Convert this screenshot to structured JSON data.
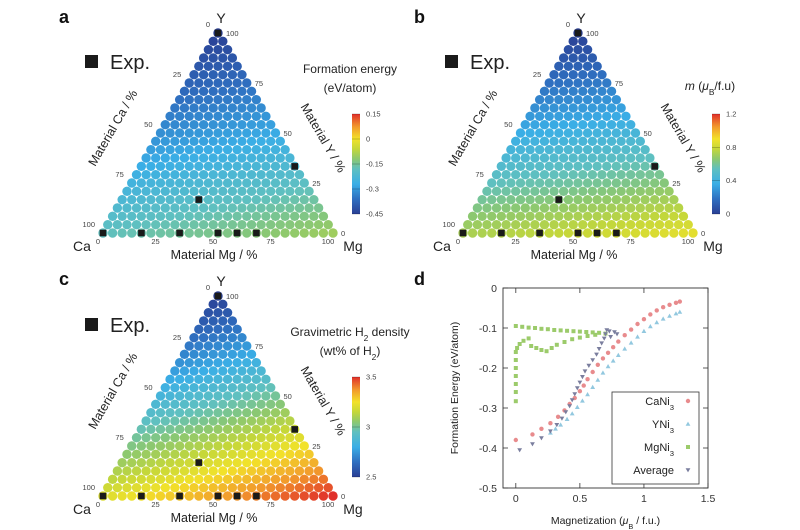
{
  "panel_labels": [
    "a",
    "b",
    "c",
    "d"
  ],
  "chart_data": [
    {
      "type": "ternary",
      "panel": "a",
      "corners": {
        "left": "Ca",
        "right": "Mg",
        "top": "Y"
      },
      "axis_labels": {
        "left": "Material Ca / %",
        "right": "Material Y / %",
        "bottom": "Material Mg / %"
      },
      "ticks": [
        "0",
        "25",
        "50",
        "75",
        "100"
      ],
      "composition_steps": 24,
      "legend": "Exp.",
      "colorbar": {
        "title_lines": [
          [
            {
              "t": "Formation energy"
            }
          ],
          [
            {
              "t": "(eV/atom)"
            }
          ]
        ],
        "ticks": [
          0.15,
          0,
          -0.15,
          -0.3,
          -0.45
        ],
        "tick_labels": [
          "0.15",
          "0",
          "-0.15",
          "-0.3",
          "-0.45"
        ],
        "range": [
          -0.45,
          0.15
        ]
      },
      "corner_values": {
        "Ca": -0.18,
        "Mg": -0.1,
        "Y": -0.45
      },
      "exp_points": [
        {
          "Ca": 100,
          "Mg": 0,
          "Y": 0
        },
        {
          "Ca": 83.3,
          "Mg": 16.7,
          "Y": 0
        },
        {
          "Ca": 66.7,
          "Mg": 33.3,
          "Y": 0
        },
        {
          "Ca": 50,
          "Mg": 50,
          "Y": 0
        },
        {
          "Ca": 41.7,
          "Mg": 58.3,
          "Y": 0
        },
        {
          "Ca": 33.3,
          "Mg": 66.7,
          "Y": 0
        },
        {
          "Ca": 50,
          "Mg": 33.3,
          "Y": 16.7
        },
        {
          "Ca": 0,
          "Mg": 66.7,
          "Y": 33.3
        },
        {
          "Ca": 0,
          "Mg": 0,
          "Y": 100
        }
      ]
    },
    {
      "type": "ternary",
      "panel": "b",
      "corners": {
        "left": "Ca",
        "right": "Mg",
        "top": "Y"
      },
      "axis_labels": {
        "left": "Material Ca / %",
        "right": "Material Y / %",
        "bottom": "Material Mg / %"
      },
      "ticks": [
        "0",
        "25",
        "50",
        "75",
        "100"
      ],
      "composition_steps": 24,
      "legend": "Exp.",
      "colorbar": {
        "title_lines": [
          [
            {
              "t": "m",
              "s": "i"
            },
            {
              "t": " ("
            },
            {
              "t": "μ",
              "s": "i"
            },
            {
              "t": "B",
              "s": "sub"
            },
            {
              "t": "/f.u)"
            }
          ]
        ],
        "ticks": [
          1.2,
          0.8,
          0.4,
          0
        ],
        "tick_labels": [
          "1.2",
          "0.8",
          "0.4",
          "0"
        ],
        "range": [
          0,
          1.2
        ]
      },
      "corner_values": {
        "Ca": 0.72,
        "Mg": 0.86,
        "Y": 0.0
      },
      "exp_points": [
        {
          "Ca": 100,
          "Mg": 0,
          "Y": 0
        },
        {
          "Ca": 83.3,
          "Mg": 16.7,
          "Y": 0
        },
        {
          "Ca": 66.7,
          "Mg": 33.3,
          "Y": 0
        },
        {
          "Ca": 50,
          "Mg": 50,
          "Y": 0
        },
        {
          "Ca": 41.7,
          "Mg": 58.3,
          "Y": 0
        },
        {
          "Ca": 33.3,
          "Mg": 66.7,
          "Y": 0
        },
        {
          "Ca": 50,
          "Mg": 33.3,
          "Y": 16.7
        },
        {
          "Ca": 0,
          "Mg": 66.7,
          "Y": 33.3
        },
        {
          "Ca": 0,
          "Mg": 0,
          "Y": 100
        }
      ]
    },
    {
      "type": "ternary",
      "panel": "c",
      "corners": {
        "left": "Ca",
        "right": "Mg",
        "top": "Y"
      },
      "axis_labels": {
        "left": "Material Ca / %",
        "right": "Material Y / %",
        "bottom": "Material Mg / %"
      },
      "ticks": [
        "0",
        "25",
        "50",
        "75",
        "100"
      ],
      "composition_steps": 24,
      "legend": "Exp.",
      "colorbar": {
        "title_lines": [
          [
            {
              "t": "Gravimetric H"
            },
            {
              "t": "2",
              "s": "sub"
            },
            {
              "t": " density"
            }
          ],
          [
            {
              "t": "(wt% of H"
            },
            {
              "t": "2",
              "s": "sub"
            },
            {
              "t": ")"
            }
          ]
        ],
        "ticks": [
          3.5,
          3,
          2.5
        ],
        "tick_labels": [
          "3.5",
          "3",
          "2.5"
        ],
        "range": [
          2.5,
          3.5
        ]
      },
      "corner_values": {
        "Ca": 3.2,
        "Mg": 3.5,
        "Y": 2.5
      },
      "exp_points": [
        {
          "Ca": 100,
          "Mg": 0,
          "Y": 0
        },
        {
          "Ca": 83.3,
          "Mg": 16.7,
          "Y": 0
        },
        {
          "Ca": 66.7,
          "Mg": 33.3,
          "Y": 0
        },
        {
          "Ca": 50,
          "Mg": 50,
          "Y": 0
        },
        {
          "Ca": 41.7,
          "Mg": 58.3,
          "Y": 0
        },
        {
          "Ca": 33.3,
          "Mg": 66.7,
          "Y": 0
        },
        {
          "Ca": 50,
          "Mg": 33.3,
          "Y": 16.7
        },
        {
          "Ca": 0,
          "Mg": 66.7,
          "Y": 33.3
        },
        {
          "Ca": 0,
          "Mg": 0,
          "Y": 100
        }
      ]
    },
    {
      "type": "scatter",
      "panel": "d",
      "xlabel": [
        {
          "t": "Magnetization ("
        },
        {
          "t": "μ",
          "s": "i"
        },
        {
          "t": "B",
          "s": "sub"
        },
        {
          "t": " / f.u.)"
        }
      ],
      "ylabel": "Formation Energy (eV/atom)",
      "xlim": [
        -0.1,
        1.5
      ],
      "ylim": [
        -0.5,
        0
      ],
      "xticks": [
        0,
        0.5,
        1,
        1.5
      ],
      "xtick_labels": [
        "0",
        "0.5",
        "1",
        "1.5"
      ],
      "yticks": [
        0,
        -0.1,
        -0.2,
        -0.3,
        -0.4,
        -0.5
      ],
      "ytick_labels": [
        "0",
        "-0.1",
        "-0.2",
        "-0.3",
        "-0.4",
        "-0.5"
      ],
      "grid": false,
      "legend_position": "bottom-right",
      "series": [
        {
          "name": [
            {
              "t": "CaNi"
            },
            {
              "t": "3",
              "s": "sub"
            }
          ],
          "color": "#e88b8d",
          "marker": "circle",
          "points": [
            [
              0,
              -0.38
            ],
            [
              0.13,
              -0.366
            ],
            [
              0.2,
              -0.352
            ],
            [
              0.27,
              -0.338
            ],
            [
              0.33,
              -0.322
            ],
            [
              0.38,
              -0.306
            ],
            [
              0.42,
              -0.29
            ],
            [
              0.46,
              -0.275
            ],
            [
              0.5,
              -0.258
            ],
            [
              0.53,
              -0.244
            ],
            [
              0.56,
              -0.228
            ],
            [
              0.6,
              -0.21
            ],
            [
              0.64,
              -0.192
            ],
            [
              0.68,
              -0.176
            ],
            [
              0.72,
              -0.162
            ],
            [
              0.76,
              -0.148
            ],
            [
              0.8,
              -0.134
            ],
            [
              0.85,
              -0.118
            ],
            [
              0.9,
              -0.104
            ],
            [
              0.95,
              -0.09
            ],
            [
              1.0,
              -0.078
            ],
            [
              1.05,
              -0.066
            ],
            [
              1.1,
              -0.056
            ],
            [
              1.15,
              -0.048
            ],
            [
              1.2,
              -0.042
            ],
            [
              1.25,
              -0.037
            ],
            [
              1.28,
              -0.034
            ]
          ]
        },
        {
          "name": [
            {
              "t": "YNi"
            },
            {
              "t": "3",
              "s": "sub"
            }
          ],
          "color": "#92c8df",
          "marker": "triangle",
          "points": [
            [
              0.27,
              -0.362
            ],
            [
              0.31,
              -0.352
            ],
            [
              0.35,
              -0.342
            ],
            [
              0.4,
              -0.328
            ],
            [
              0.44,
              -0.314
            ],
            [
              0.48,
              -0.298
            ],
            [
              0.52,
              -0.282
            ],
            [
              0.56,
              -0.266
            ],
            [
              0.6,
              -0.248
            ],
            [
              0.64,
              -0.23
            ],
            [
              0.68,
              -0.212
            ],
            [
              0.72,
              -0.196
            ],
            [
              0.76,
              -0.182
            ],
            [
              0.8,
              -0.168
            ],
            [
              0.85,
              -0.152
            ],
            [
              0.9,
              -0.137
            ],
            [
              0.95,
              -0.122
            ],
            [
              1.0,
              -0.108
            ],
            [
              1.05,
              -0.096
            ],
            [
              1.1,
              -0.086
            ],
            [
              1.15,
              -0.077
            ],
            [
              1.2,
              -0.07
            ],
            [
              1.25,
              -0.064
            ],
            [
              1.28,
              -0.06
            ]
          ]
        },
        {
          "name": [
            {
              "t": "MgNi"
            },
            {
              "t": "3",
              "s": "sub"
            }
          ],
          "color": "#9ccb6b",
          "marker": "square",
          "points": [
            [
              0,
              -0.283
            ],
            [
              0,
              -0.26
            ],
            [
              0,
              -0.24
            ],
            [
              0,
              -0.22
            ],
            [
              0,
              -0.2
            ],
            [
              0,
              -0.18
            ],
            [
              0,
              -0.16
            ],
            [
              0.01,
              -0.15
            ],
            [
              0.03,
              -0.14
            ],
            [
              0.06,
              -0.132
            ],
            [
              0.1,
              -0.126
            ],
            [
              0,
              -0.095
            ],
            [
              0.05,
              -0.097
            ],
            [
              0.1,
              -0.099
            ],
            [
              0.15,
              -0.1
            ],
            [
              0.2,
              -0.102
            ],
            [
              0.25,
              -0.103
            ],
            [
              0.3,
              -0.105
            ],
            [
              0.35,
              -0.106
            ],
            [
              0.4,
              -0.107
            ],
            [
              0.45,
              -0.108
            ],
            [
              0.5,
              -0.109
            ],
            [
              0.55,
              -0.11
            ],
            [
              0.6,
              -0.111
            ],
            [
              0.65,
              -0.112
            ],
            [
              0.7,
              -0.114
            ],
            [
              0.12,
              -0.145
            ],
            [
              0.16,
              -0.15
            ],
            [
              0.2,
              -0.155
            ],
            [
              0.24,
              -0.158
            ],
            [
              0.28,
              -0.15
            ],
            [
              0.32,
              -0.142
            ],
            [
              0.38,
              -0.135
            ],
            [
              0.44,
              -0.128
            ],
            [
              0.5,
              -0.124
            ],
            [
              0.56,
              -0.12
            ],
            [
              0.62,
              -0.117
            ]
          ]
        },
        {
          "name": [
            {
              "t": "Average"
            }
          ],
          "color": "#7a7e9e",
          "marker": "down-triangle",
          "points": [
            [
              0.03,
              -0.405
            ],
            [
              0.13,
              -0.39
            ],
            [
              0.2,
              -0.375
            ],
            [
              0.27,
              -0.358
            ],
            [
              0.32,
              -0.342
            ],
            [
              0.36,
              -0.326
            ],
            [
              0.39,
              -0.31
            ],
            [
              0.42,
              -0.295
            ],
            [
              0.44,
              -0.28
            ],
            [
              0.46,
              -0.265
            ],
            [
              0.48,
              -0.25
            ],
            [
              0.5,
              -0.236
            ],
            [
              0.52,
              -0.222
            ],
            [
              0.54,
              -0.208
            ],
            [
              0.57,
              -0.194
            ],
            [
              0.6,
              -0.18
            ],
            [
              0.63,
              -0.166
            ],
            [
              0.65,
              -0.152
            ],
            [
              0.67,
              -0.138
            ],
            [
              0.69,
              -0.126
            ],
            [
              0.7,
              -0.115
            ],
            [
              0.73,
              -0.108
            ],
            [
              0.77,
              -0.11
            ],
            [
              0.79,
              -0.115
            ],
            [
              0.74,
              -0.122
            ],
            [
              0.71,
              -0.105
            ]
          ]
        }
      ]
    }
  ]
}
